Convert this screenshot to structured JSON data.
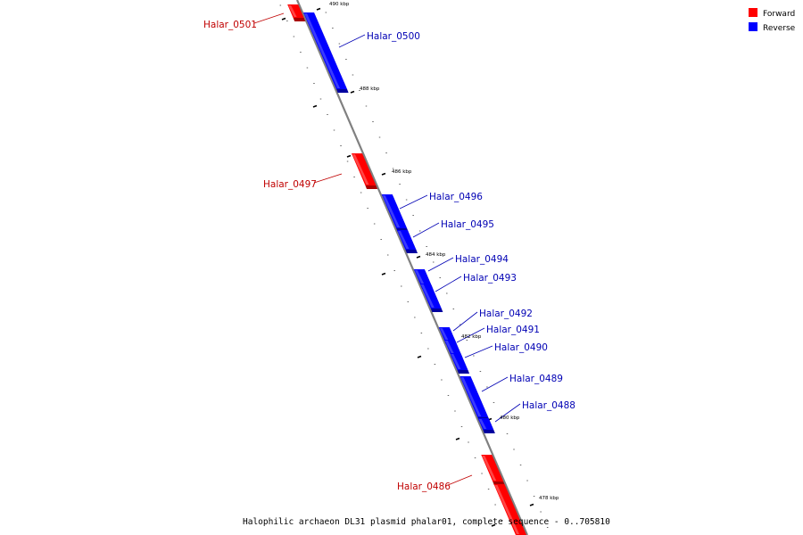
{
  "colors": {
    "forward": "#ff0000",
    "forward_dark": "#a80000",
    "forward_light": "#ff8080",
    "reverse": "#0000ff",
    "reverse_dark": "#0000a0",
    "reverse_light": "#6a6aff",
    "backbone": "#808080",
    "forward_label": "#c00000",
    "reverse_label": "#0000b4"
  },
  "legend": {
    "forward_label": "Forward",
    "reverse_label": "Reverse"
  },
  "caption": "Halophilic archaeon DL31 plasmid phalar01, complete sequence - 0..705810",
  "coordinate_labels": [
    "490 kbp",
    "488 kbp",
    "486 kbp",
    "484 kbp",
    "482 kbp",
    "480 kbp",
    "478 kbp"
  ],
  "genes": [
    {
      "name": "Halar_0501",
      "strand": "forward"
    },
    {
      "name": "Halar_0500",
      "strand": "reverse"
    },
    {
      "name": "Halar_0497",
      "strand": "forward"
    },
    {
      "name": "Halar_0496",
      "strand": "reverse"
    },
    {
      "name": "Halar_0495",
      "strand": "reverse"
    },
    {
      "name": "Halar_0494",
      "strand": "reverse"
    },
    {
      "name": "Halar_0493",
      "strand": "reverse"
    },
    {
      "name": "Halar_0492",
      "strand": "reverse"
    },
    {
      "name": "Halar_0491",
      "strand": "reverse"
    },
    {
      "name": "Halar_0490",
      "strand": "reverse"
    },
    {
      "name": "Halar_0489",
      "strand": "reverse"
    },
    {
      "name": "Halar_0488",
      "strand": "reverse"
    },
    {
      "name": "Halar_0486",
      "strand": "forward"
    },
    {
      "name": "",
      "strand": "forward"
    }
  ]
}
